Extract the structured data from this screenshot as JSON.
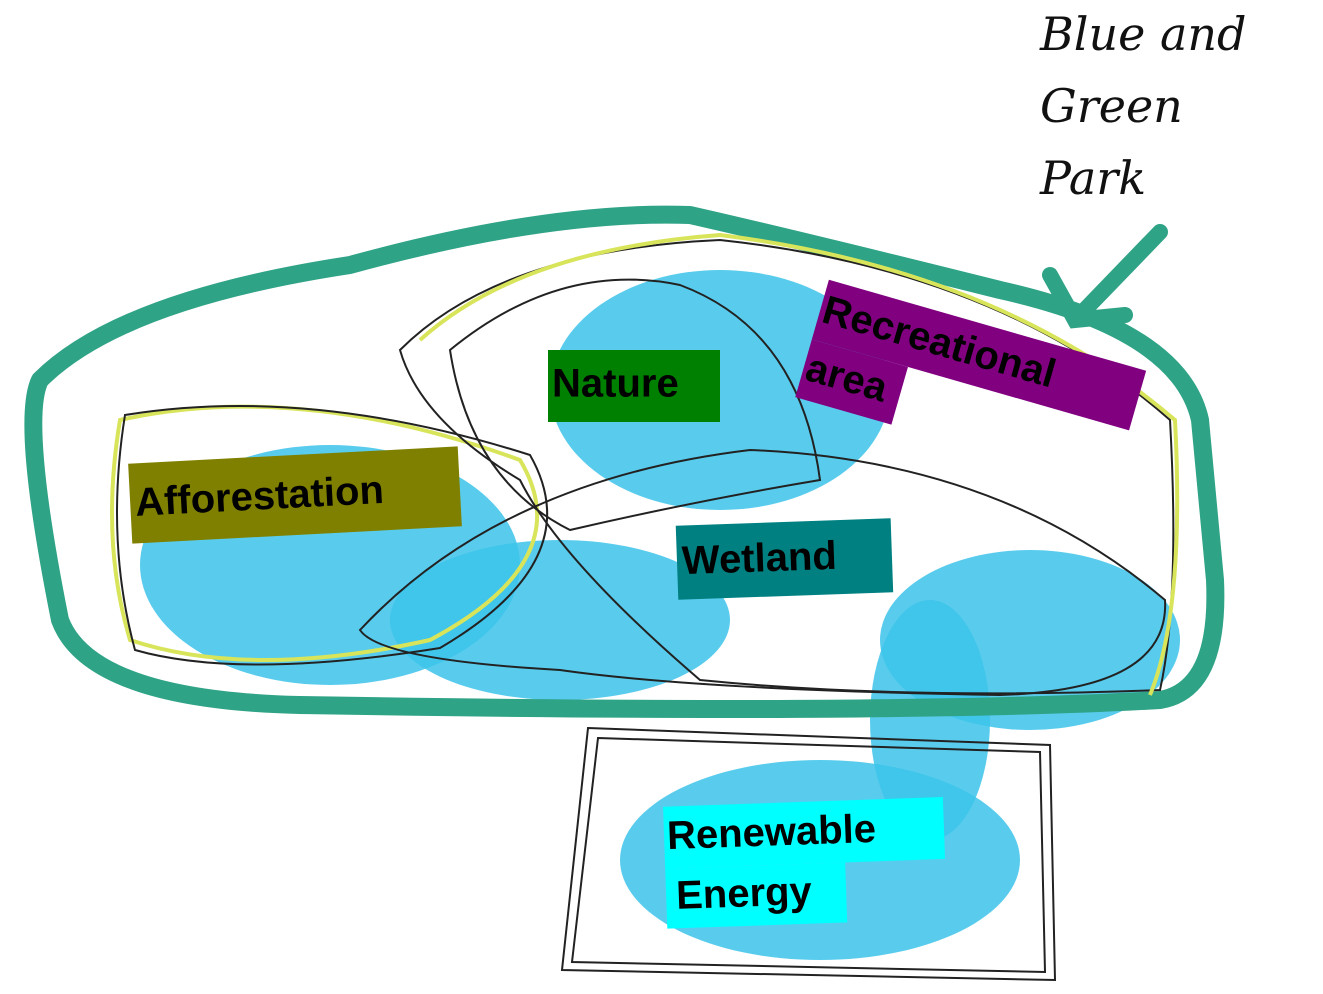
{
  "title_lines": [
    "Blue and",
    "Green",
    "Park"
  ],
  "labels": {
    "afforestation": "Afforestation",
    "nature": "Nature",
    "recreational": [
      "Recreational",
      "area"
    ],
    "wetland": "Wetland",
    "renewable": [
      "Renewable",
      "Energy"
    ]
  }
}
